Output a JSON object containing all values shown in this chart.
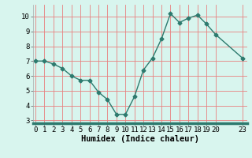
{
  "x": [
    0,
    1,
    2,
    3,
    4,
    5,
    6,
    7,
    8,
    9,
    10,
    11,
    12,
    13,
    14,
    15,
    16,
    17,
    18,
    19,
    20,
    23
  ],
  "y": [
    7.0,
    7.0,
    6.8,
    6.5,
    6.0,
    5.7,
    5.7,
    4.9,
    4.4,
    3.4,
    3.4,
    4.6,
    6.4,
    7.2,
    8.5,
    10.2,
    9.6,
    9.9,
    10.1,
    9.5,
    8.8,
    7.2
  ],
  "xlim": [
    -0.3,
    23.5
  ],
  "ylim": [
    2.8,
    10.8
  ],
  "xticks": [
    0,
    1,
    2,
    3,
    4,
    5,
    6,
    7,
    8,
    9,
    10,
    11,
    12,
    13,
    14,
    15,
    16,
    17,
    18,
    19,
    20,
    23
  ],
  "yticks": [
    3,
    4,
    5,
    6,
    7,
    8,
    9,
    10
  ],
  "xlabel": "Humidex (Indice chaleur)",
  "line_color": "#2d7a6e",
  "marker": "D",
  "marker_size": 2.5,
  "bg_color": "#d8f5ee",
  "grid_color": "#e88080",
  "axis_bg": "#d8f5ee",
  "bottom_bar_color": "#2d7a6e",
  "tick_fontsize": 6.5,
  "xlabel_fontsize": 7.5
}
